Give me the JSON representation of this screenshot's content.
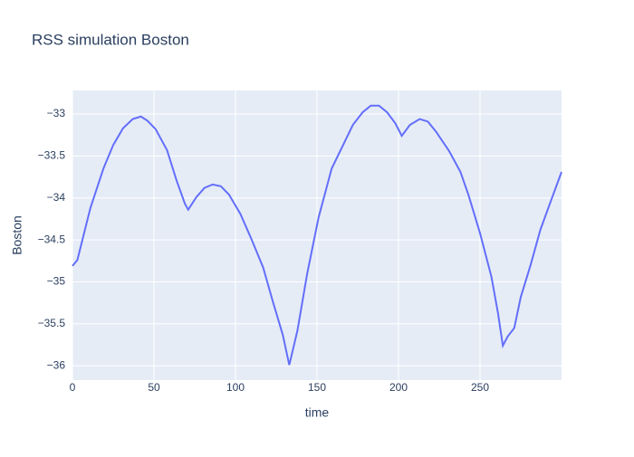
{
  "chart_data": {
    "type": "line",
    "title": "RSS simulation Boston",
    "x_label": "time",
    "y_label": "Boston",
    "x": [
      0,
      3,
      11,
      19,
      25,
      31,
      37,
      42,
      46,
      51,
      58,
      64,
      69,
      71,
      76,
      81,
      86,
      91,
      96,
      103,
      110,
      117,
      123,
      129,
      133,
      138,
      144,
      151,
      159,
      166,
      172,
      178,
      183,
      188,
      193,
      198,
      202,
      207,
      213,
      218,
      223,
      231,
      238,
      243,
      250,
      257,
      261,
      264,
      267,
      271,
      275,
      281,
      287,
      293,
      300
    ],
    "series": [
      {
        "name": "Boston",
        "color": "#636efa",
        "values": [
          -34.81,
          -34.74,
          -34.12,
          -33.65,
          -33.37,
          -33.17,
          -33.06,
          -33.03,
          -33.08,
          -33.18,
          -33.43,
          -33.8,
          -34.07,
          -34.14,
          -33.99,
          -33.88,
          -33.84,
          -33.86,
          -33.96,
          -34.19,
          -34.5,
          -34.83,
          -35.24,
          -35.63,
          -35.99,
          -35.58,
          -34.9,
          -34.23,
          -33.65,
          -33.37,
          -33.13,
          -32.98,
          -32.9,
          -32.9,
          -32.98,
          -33.11,
          -33.26,
          -33.13,
          -33.06,
          -33.09,
          -33.21,
          -33.44,
          -33.69,
          -33.97,
          -34.42,
          -34.94,
          -35.37,
          -35.76,
          -35.65,
          -35.55,
          -35.18,
          -34.8,
          -34.38,
          -34.06,
          -33.69
        ]
      }
    ],
    "xlim": [
      0,
      300
    ],
    "xticks": [
      0,
      50,
      100,
      150,
      200,
      250
    ],
    "ylim": [
      -36.17,
      -32.72
    ],
    "yticks": [
      {
        "value": -33,
        "label": "−33"
      },
      {
        "value": -33.5,
        "label": "−33.5"
      },
      {
        "value": -34,
        "label": "−34"
      },
      {
        "value": -34.5,
        "label": "−34.5"
      },
      {
        "value": -35,
        "label": "−35"
      },
      {
        "value": -35.5,
        "label": "−35.5"
      },
      {
        "value": -36,
        "label": "−36"
      }
    ],
    "grid": true
  }
}
